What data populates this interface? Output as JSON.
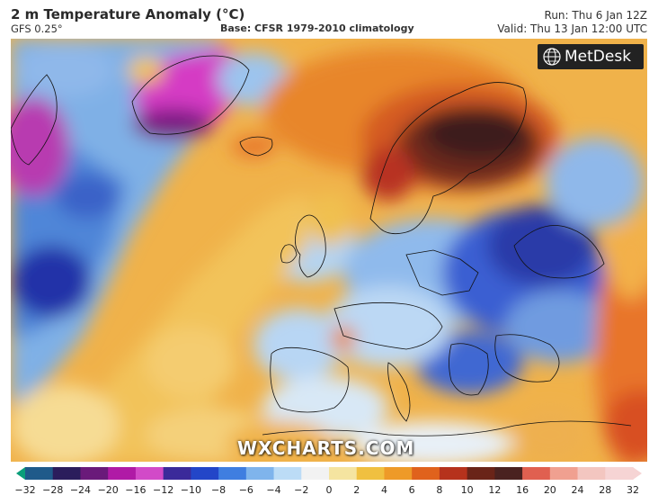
{
  "header": {
    "title": "2 m Temperature Anomaly (°C)",
    "model": "GFS 0.25°",
    "base": "Base: CFSR 1979-2010 climatology",
    "run": "Run: Thu 6 Jan 12Z",
    "valid": "Valid: Thu 13 Jan 12:00 UTC"
  },
  "logo": {
    "text": "MetDesk",
    "icon": "metdesk-globe-icon"
  },
  "watermark": "WXCHARTS.COM",
  "colorbar": {
    "ticks": [
      "−32",
      "−28",
      "−24",
      "−20",
      "−16",
      "−12",
      "−10",
      "−8",
      "−6",
      "−4",
      "−2",
      "0",
      "2",
      "4",
      "6",
      "8",
      "10",
      "12",
      "16",
      "20",
      "24",
      "28",
      "32"
    ],
    "colors": [
      "#0a9e7a",
      "#1f5a8a",
      "#2b1d5c",
      "#6a1a7a",
      "#b01aa6",
      "#d24ac8",
      "#3b2a9a",
      "#2346c8",
      "#3f7ee0",
      "#7fb4ec",
      "#bcdcf6",
      "#f2f2f2",
      "#f5e4a0",
      "#f0c040",
      "#ee9a28",
      "#e0621c",
      "#b6321c",
      "#6a2418",
      "#4a2220",
      "#e06050",
      "#f0a090",
      "#f3c6c0",
      "#f6d4d4"
    ]
  }
}
